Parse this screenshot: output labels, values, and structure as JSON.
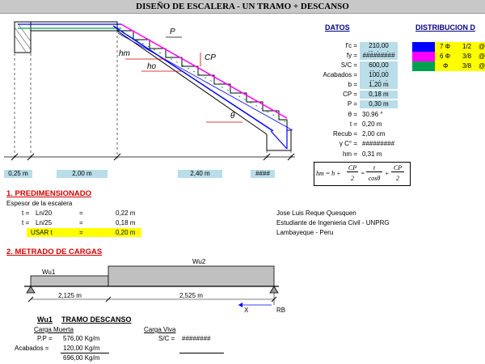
{
  "title": "DISEÑO DE ESCALERA - UN TRAMO + DESCANSO",
  "datos": {
    "header": "DATOS",
    "rows": [
      {
        "label": "f'c =",
        "value": "210,00 Kg/cm²"
      },
      {
        "label": "fy =",
        "value": "#########"
      },
      {
        "label": "S/C =",
        "value": "600,00 Kg/m²"
      },
      {
        "label": "Acabados =",
        "value": "100,00 Kg/m²"
      },
      {
        "label": "b =",
        "value": "1,20 m"
      },
      {
        "label": "CP =",
        "value": "0,18 m"
      },
      {
        "label": "P =",
        "value": "0,30 m"
      }
    ],
    "extra": [
      {
        "label": "θ =",
        "value": "30,96 °"
      },
      {
        "label": "t =",
        "value": "0,20 m"
      },
      {
        "label": "Recub =",
        "value": "2,00 cm"
      },
      {
        "label": "γ C° =",
        "value": "#########"
      },
      {
        "label": "hm =",
        "value": "0,31 m"
      }
    ]
  },
  "distribucion": {
    "header": "DISTRIBUCION D",
    "rows": [
      {
        "color": "#0000ff",
        "qty": "7 Φ",
        "size": "1/2",
        "at": "@"
      },
      {
        "color": "#ff00ff",
        "qty": "6 Φ",
        "size": "3/8",
        "at": "@"
      },
      {
        "color": "#00a050",
        "qty": "Φ",
        "size": "3/8",
        "at": "@"
      }
    ]
  },
  "dims": {
    "d1": "0,25 m",
    "d2": "2,00 m",
    "d3": "2,40 m",
    "d4": "####"
  },
  "drawing_labels": {
    "p": "P",
    "cp": "CP",
    "hm": "hm",
    "ho": "ho",
    "theta": "θ"
  },
  "formula": {
    "lhs": "hm = h +",
    "num1": "CP",
    "den1": "2",
    "eq": "=",
    "num2": "t",
    "den2": "cosθ",
    "plus": "+",
    "num3": "CP",
    "den3": "2"
  },
  "predim": {
    "heading": "1. PREDIMENSIONADO",
    "subtitle": "Espesor de la escalera",
    "rows": [
      {
        "a": "t =",
        "b": "Ln/20",
        "eq": "=",
        "val": "0,22 m"
      },
      {
        "a": "t =",
        "b": "Ln/25",
        "eq": "=",
        "val": "0,18 m"
      }
    ],
    "usar": {
      "label": "USAR t",
      "eq": "=",
      "val": "0,20 m"
    }
  },
  "author": {
    "name": "Jose Luis Reque Quesquen",
    "role": "Estudiante de Ingenieria Civil - UNPRG",
    "place": "Lambayeque - Peru"
  },
  "cargas": {
    "heading": "2. METRADO DE CARGAS",
    "wu1": "Wu1",
    "wu2": "Wu2",
    "span1": "2,125 m",
    "span2": "2,525 m",
    "x": "X",
    "rb": "RB"
  },
  "tramo": {
    "wu": "Wu1",
    "title": "TRAMO DESCANSO",
    "cm": "Carga Muerta",
    "cv": "Carga Viva",
    "pp_label": "P.P =",
    "pp_val": "576,00 Kg/m",
    "ac_label": "Acabados =",
    "ac_val": "120,00 Kg/m",
    "total": "696,00 Kg/m",
    "sc_label": "S/C =",
    "sc_val": "########"
  }
}
